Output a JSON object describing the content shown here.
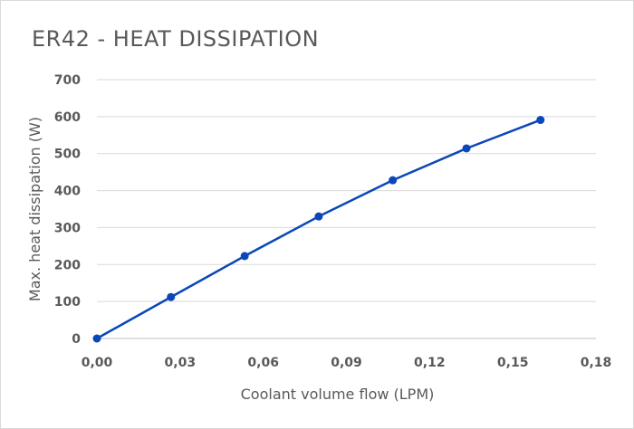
{
  "chart_data": {
    "type": "line",
    "title": "ER42 - HEAT DISSIPATION",
    "xlabel": "Coolant volume flow (LPM)",
    "ylabel": "Max. heat dissipation (W)",
    "xlim": [
      0,
      0.18
    ],
    "ylim": [
      0,
      700
    ],
    "x_ticks": [
      "0,00",
      "0,03",
      "0,06",
      "0,09",
      "0,12",
      "0,15",
      "0,18"
    ],
    "y_ticks": [
      "0",
      "100",
      "200",
      "300",
      "400",
      "500",
      "600",
      "700"
    ],
    "grid": true,
    "series": [
      {
        "color": "#0a47b8",
        "x": [
          0.0,
          0.0267,
          0.0533,
          0.08,
          0.1067,
          0.1333,
          0.16
        ],
        "y": [
          0,
          112,
          223,
          330,
          428,
          514,
          591
        ]
      }
    ]
  }
}
